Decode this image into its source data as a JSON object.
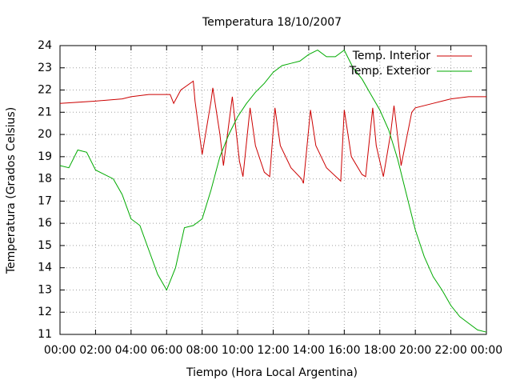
{
  "chart_data": {
    "type": "line",
    "title": "Temperatura 18/10/2007",
    "x_label": "Tiempo (Hora Local Argentina)",
    "y_label": "Temperatura (Grados Celsius)",
    "xlim": [
      0,
      24
    ],
    "xticks": [
      {
        "value": 0,
        "label": "00:00"
      },
      {
        "value": 2,
        "label": "02:00"
      },
      {
        "value": 4,
        "label": "04:00"
      },
      {
        "value": 6,
        "label": "06:00"
      },
      {
        "value": 8,
        "label": "08:00"
      },
      {
        "value": 10,
        "label": "10:00"
      },
      {
        "value": 12,
        "label": "12:00"
      },
      {
        "value": 14,
        "label": "14:00"
      },
      {
        "value": 16,
        "label": "16:00"
      },
      {
        "value": 18,
        "label": "18:00"
      },
      {
        "value": 20,
        "label": "20:00"
      },
      {
        "value": 22,
        "label": "22:00"
      },
      {
        "value": 24,
        "label": "00:00"
      }
    ],
    "ylim": [
      11,
      24
    ],
    "yticks": [
      11,
      12,
      13,
      14,
      15,
      16,
      17,
      18,
      19,
      20,
      21,
      22,
      23,
      24
    ],
    "grid": true,
    "legend": "top-right",
    "series": [
      {
        "name": "Temp. Interior",
        "color": "#cc0000",
        "x": [
          0,
          2,
          3.5,
          4,
          5,
          6.2,
          6.4,
          6.8,
          7.5,
          7.6,
          8.0,
          8.5,
          8.6,
          9.0,
          9.2,
          9.7,
          10.1,
          10.3,
          10.7,
          11.0,
          11.5,
          11.8,
          12.1,
          12.4,
          13.0,
          13.6,
          13.7,
          14.1,
          14.4,
          15.0,
          15.8,
          16.0,
          16.4,
          17.0,
          17.2,
          17.6,
          17.8,
          18.2,
          18.6,
          18.8,
          19.2,
          19.8,
          20,
          21,
          22,
          23,
          24
        ],
        "values": [
          21.4,
          21.5,
          21.6,
          21.7,
          21.8,
          21.8,
          21.4,
          22.0,
          22.4,
          21.5,
          19.1,
          21.5,
          22.1,
          20.0,
          18.6,
          21.7,
          18.8,
          18.1,
          21.2,
          19.5,
          18.3,
          18.1,
          21.2,
          19.5,
          18.5,
          18.0,
          17.8,
          21.1,
          19.5,
          18.5,
          17.9,
          21.1,
          19.0,
          18.2,
          18.1,
          21.2,
          19.5,
          18.1,
          20.0,
          21.3,
          18.6,
          21.0,
          21.2,
          21.4,
          21.6,
          21.7,
          21.7
        ]
      },
      {
        "name": "Temp. Exterior",
        "color": "#00aa00",
        "x": [
          0,
          0.5,
          1,
          1.5,
          2,
          2.5,
          3,
          3.5,
          4,
          4.5,
          5,
          5.5,
          6,
          6.5,
          7,
          7.5,
          8,
          8.5,
          9,
          9.5,
          10,
          10.5,
          11,
          11.5,
          12,
          12.5,
          13,
          13.5,
          14,
          14.5,
          15,
          15.5,
          16,
          16.5,
          17,
          17.5,
          18,
          18.5,
          19,
          19.5,
          20,
          20.5,
          21,
          21.5,
          22,
          22.5,
          23,
          23.5,
          24
        ],
        "values": [
          18.6,
          18.5,
          19.3,
          19.2,
          18.4,
          18.2,
          18.0,
          17.3,
          16.2,
          15.9,
          14.8,
          13.7,
          13.0,
          14.0,
          15.8,
          15.9,
          16.2,
          17.5,
          19.0,
          20.0,
          20.8,
          21.4,
          21.9,
          22.3,
          22.8,
          23.1,
          23.2,
          23.3,
          23.6,
          23.8,
          23.5,
          23.5,
          23.8,
          23.0,
          22.5,
          21.8,
          21.1,
          20.2,
          18.9,
          17.3,
          15.7,
          14.5,
          13.6,
          13.0,
          12.3,
          11.8,
          11.5,
          11.2,
          11.1
        ]
      }
    ]
  }
}
